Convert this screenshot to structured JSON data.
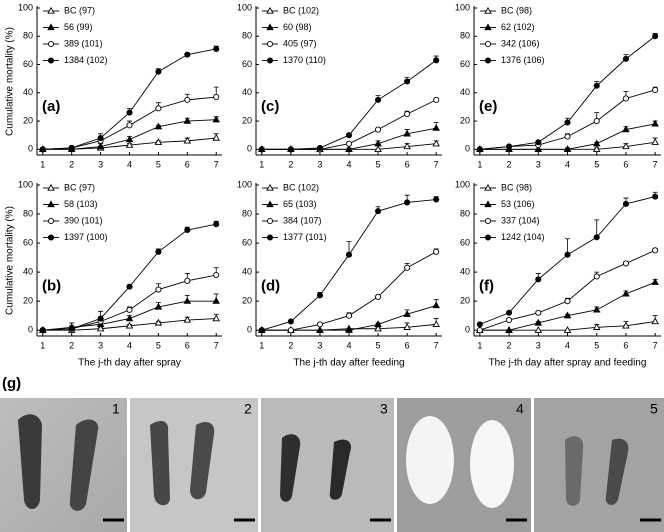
{
  "chart_data": [
    {
      "type": "line",
      "panel_label": "(a)",
      "y_label": "Cumulative mortality (%)",
      "x": [
        1,
        2,
        3,
        4,
        5,
        6,
        7
      ],
      "xlim": [
        0.8,
        7.2
      ],
      "ylim": [
        -4,
        100
      ],
      "xticks": [
        1,
        2,
        3,
        4,
        5,
        6,
        7
      ],
      "yticks": [
        0,
        20,
        40,
        60,
        80,
        100
      ],
      "series": [
        {
          "name": "BC (97)",
          "color": "#000000",
          "marker": "triangle-open",
          "values": [
            0,
            0,
            1,
            3,
            5,
            6,
            8
          ],
          "errors": [
            1,
            1,
            1,
            1,
            1,
            2,
            3
          ]
        },
        {
          "name": "56 (99)",
          "color": "#000000",
          "marker": "triangle-filled",
          "values": [
            0,
            0,
            2,
            7,
            16,
            20,
            21
          ],
          "errors": [
            1,
            1,
            2,
            2,
            1,
            2,
            2
          ]
        },
        {
          "name": "389 (101)",
          "color": "#000000",
          "marker": "circle-open",
          "values": [
            0,
            1,
            6,
            17,
            29,
            35,
            37
          ],
          "errors": [
            0,
            1,
            2,
            3,
            4,
            4,
            7
          ]
        },
        {
          "name": "1384 (102)",
          "color": "#000000",
          "marker": "circle-filled",
          "values": [
            0,
            1,
            8,
            26,
            55,
            67,
            71
          ],
          "errors": [
            0,
            1,
            3,
            3,
            2,
            1,
            2
          ]
        }
      ]
    },
    {
      "type": "line",
      "panel_label": "(c)",
      "x": [
        1,
        2,
        3,
        4,
        5,
        6,
        7
      ],
      "xlim": [
        0.8,
        7.2
      ],
      "ylim": [
        -4,
        100
      ],
      "xticks": [
        1,
        2,
        3,
        4,
        5,
        6,
        7
      ],
      "yticks": [
        0,
        20,
        40,
        60,
        80,
        100
      ],
      "series": [
        {
          "name": "BC (102)",
          "color": "#000000",
          "marker": "triangle-open",
          "values": [
            0,
            0,
            0,
            0,
            0,
            2,
            4
          ],
          "errors": [
            0,
            0,
            0,
            0,
            0,
            2,
            2
          ]
        },
        {
          "name": "60 (98)",
          "color": "#000000",
          "marker": "triangle-filled",
          "values": [
            0,
            0,
            0,
            0,
            4,
            11,
            15
          ],
          "errors": [
            0,
            0,
            0,
            1,
            2,
            3,
            4
          ]
        },
        {
          "name": "405 (97)",
          "color": "#000000",
          "marker": "circle-open",
          "values": [
            0,
            0,
            0,
            4,
            14,
            25,
            35
          ],
          "errors": [
            0,
            0,
            0,
            1,
            1,
            2,
            1
          ]
        },
        {
          "name": "1370 (110)",
          "color": "#000000",
          "marker": "circle-filled",
          "values": [
            0,
            0,
            1,
            10,
            35,
            48,
            63
          ],
          "errors": [
            0,
            0,
            0,
            1,
            3,
            3,
            3
          ]
        }
      ]
    },
    {
      "type": "line",
      "panel_label": "(e)",
      "x": [
        1,
        2,
        3,
        4,
        5,
        6,
        7
      ],
      "xlim": [
        0.8,
        7.2
      ],
      "ylim": [
        -4,
        100
      ],
      "xticks": [
        1,
        2,
        3,
        4,
        5,
        6,
        7
      ],
      "yticks": [
        0,
        20,
        40,
        60,
        80,
        100
      ],
      "series": [
        {
          "name": "BC (98)",
          "color": "#000000",
          "marker": "triangle-open",
          "values": [
            0,
            0,
            0,
            0,
            0,
            2,
            5
          ],
          "errors": [
            0,
            0,
            0,
            0,
            1,
            2,
            3
          ]
        },
        {
          "name": "62 (102)",
          "color": "#000000",
          "marker": "triangle-filled",
          "values": [
            0,
            0,
            0,
            0,
            4,
            14,
            18
          ],
          "errors": [
            0,
            0,
            0,
            1,
            1,
            2,
            2
          ]
        },
        {
          "name": "342 (106)",
          "color": "#000000",
          "marker": "circle-open",
          "values": [
            0,
            2,
            3,
            9,
            20,
            36,
            42
          ],
          "errors": [
            0,
            0,
            1,
            2,
            6,
            5,
            2
          ]
        },
        {
          "name": "1376 (106)",
          "color": "#000000",
          "marker": "circle-filled",
          "values": [
            0,
            2,
            5,
            19,
            45,
            64,
            80
          ],
          "errors": [
            0,
            0,
            1,
            3,
            3,
            3,
            2
          ]
        }
      ]
    },
    {
      "type": "line",
      "panel_label": "(b)",
      "y_label": "Cumulative mortality (%)",
      "x_label": "The j-th day after spray",
      "x": [
        1,
        2,
        3,
        4,
        5,
        6,
        7
      ],
      "xlim": [
        0.8,
        7.2
      ],
      "ylim": [
        -4,
        100
      ],
      "xticks": [
        1,
        2,
        3,
        4,
        5,
        6,
        7
      ],
      "yticks": [
        0,
        20,
        40,
        60,
        80,
        100
      ],
      "series": [
        {
          "name": "BC (97)",
          "color": "#000000",
          "marker": "triangle-open",
          "values": [
            0,
            0,
            1,
            3,
            5,
            7,
            8
          ],
          "errors": [
            0,
            0,
            1,
            1,
            1,
            2,
            3
          ]
        },
        {
          "name": "58 (103)",
          "color": "#000000",
          "marker": "triangle-filled",
          "values": [
            0,
            2,
            4,
            8,
            16,
            20,
            20
          ],
          "errors": [
            0,
            1,
            2,
            2,
            3,
            4,
            5
          ]
        },
        {
          "name": "390 (101)",
          "color": "#000000",
          "marker": "circle-open",
          "values": [
            0,
            1,
            6,
            14,
            28,
            34,
            38
          ],
          "errors": [
            0,
            1,
            2,
            2,
            4,
            5,
            5
          ]
        },
        {
          "name": "1397 (100)",
          "color": "#000000",
          "marker": "circle-filled",
          "values": [
            0,
            1,
            8,
            30,
            54,
            69,
            73
          ],
          "errors": [
            0,
            4,
            5,
            1,
            2,
            2,
            2
          ]
        }
      ]
    },
    {
      "type": "line",
      "panel_label": "(d)",
      "x_label": "The j-th day after feeding",
      "x": [
        1,
        2,
        3,
        4,
        5,
        6,
        7
      ],
      "xlim": [
        0.8,
        7.2
      ],
      "ylim": [
        -4,
        100
      ],
      "xticks": [
        1,
        2,
        3,
        4,
        5,
        6,
        7
      ],
      "yticks": [
        0,
        20,
        40,
        60,
        80,
        100
      ],
      "series": [
        {
          "name": "BC (102)",
          "color": "#000000",
          "marker": "triangle-open",
          "values": [
            0,
            0,
            0,
            1,
            1,
            2,
            4
          ],
          "errors": [
            0,
            0,
            0,
            0,
            1,
            3,
            4
          ]
        },
        {
          "name": "65 (103)",
          "color": "#000000",
          "marker": "triangle-filled",
          "values": [
            0,
            0,
            0,
            0,
            4,
            11,
            17
          ],
          "errors": [
            0,
            0,
            0,
            1,
            1,
            3,
            4
          ]
        },
        {
          "name": "384 (107)",
          "color": "#000000",
          "marker": "circle-open",
          "values": [
            0,
            0,
            4,
            10,
            23,
            43,
            54
          ],
          "errors": [
            0,
            0,
            1,
            2,
            1,
            3,
            2
          ]
        },
        {
          "name": "1377 (101)",
          "color": "#000000",
          "marker": "circle-filled",
          "values": [
            0,
            6,
            24,
            52,
            82,
            88,
            90
          ],
          "errors": [
            0,
            0,
            2,
            9,
            3,
            5,
            2
          ]
        }
      ]
    },
    {
      "type": "line",
      "panel_label": "(f)",
      "x_label": "The j-th day after spray and feeding",
      "x": [
        1,
        2,
        3,
        4,
        5,
        6,
        7
      ],
      "xlim": [
        0.8,
        7.2
      ],
      "ylim": [
        -4,
        100
      ],
      "xticks": [
        1,
        2,
        3,
        4,
        5,
        6,
        7
      ],
      "yticks": [
        0,
        20,
        40,
        60,
        80,
        100
      ],
      "series": [
        {
          "name": "BC (98)",
          "color": "#000000",
          "marker": "triangle-open",
          "values": [
            0,
            0,
            0,
            0,
            2,
            3,
            6
          ],
          "errors": [
            0,
            0,
            0,
            0,
            2,
            3,
            4
          ]
        },
        {
          "name": "53 (106)",
          "color": "#000000",
          "marker": "triangle-filled",
          "values": [
            0,
            0,
            5,
            10,
            14,
            25,
            33
          ],
          "errors": [
            0,
            0,
            1,
            1,
            2,
            2,
            2
          ]
        },
        {
          "name": "337 (104)",
          "color": "#000000",
          "marker": "circle-open",
          "values": [
            0,
            7,
            12,
            20,
            37,
            46,
            55
          ],
          "errors": [
            0,
            1,
            1,
            2,
            3,
            1,
            1
          ]
        },
        {
          "name": "1242 (104)",
          "color": "#000000",
          "marker": "circle-filled",
          "values": [
            4,
            12,
            35,
            52,
            64,
            87,
            92
          ],
          "errors": [
            1,
            1,
            4,
            11,
            12,
            4,
            3
          ]
        }
      ]
    }
  ],
  "panel_g": {
    "label": "(g)",
    "photos": [
      "1",
      "2",
      "3",
      "4",
      "5"
    ]
  }
}
